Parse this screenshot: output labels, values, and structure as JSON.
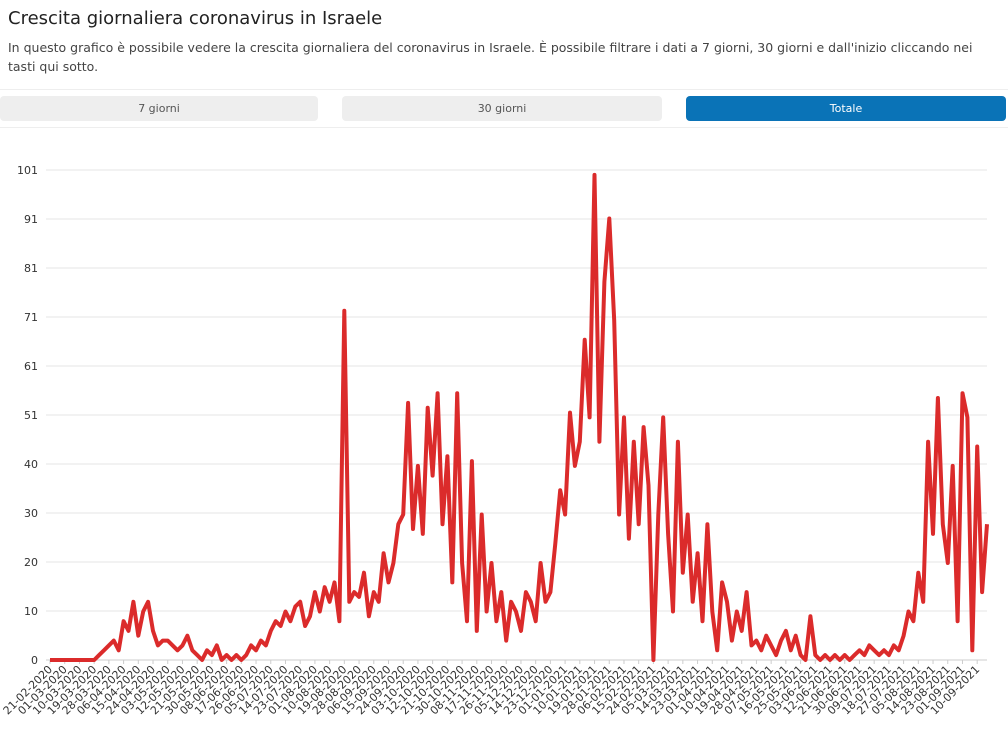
{
  "header": {
    "title": "Crescita giornaliera coronavirus in Israele",
    "subtitle": "In questo grafico è possibile vedere la crescita giornaliera del coronavirus in Israele. È possibile filtrare i dati a 7 giorni, 30 giorni e dall'inizio cliccando nei tasti qui sotto."
  },
  "buttons": [
    "7 giorni",
    "30 giorni",
    "Totale"
  ],
  "chart_data": {
    "type": "line",
    "color": "#db2b2b",
    "grid": true,
    "ylim": [
      0,
      101
    ],
    "yticks": [
      {
        "value": 0,
        "label": "0"
      },
      {
        "value": 10.1,
        "label": "10"
      },
      {
        "value": 20.2,
        "label": "20"
      },
      {
        "value": 30.3,
        "label": "30"
      },
      {
        "value": 40.4,
        "label": "40"
      },
      {
        "value": 50.5,
        "label": "51"
      },
      {
        "value": 60.6,
        "label": "61"
      },
      {
        "value": 70.7,
        "label": "71"
      },
      {
        "value": 80.8,
        "label": "81"
      },
      {
        "value": 90.9,
        "label": "91"
      },
      {
        "value": 101,
        "label": "101"
      }
    ],
    "categories": [
      "21-02-2020",
      null,
      null,
      "01-03-2020",
      null,
      null,
      "10-03-2020",
      null,
      null,
      "19-03-2020",
      null,
      null,
      "28-03-2020",
      null,
      null,
      "06-04-2020",
      null,
      null,
      "15-04-2020",
      null,
      null,
      "24-04-2020",
      null,
      null,
      "03-05-2020",
      null,
      null,
      "12-05-2020",
      null,
      null,
      "21-05-2020",
      null,
      null,
      "30-05-2020",
      null,
      null,
      "08-06-2020",
      null,
      null,
      "17-06-2020",
      null,
      null,
      "26-06-2020",
      null,
      null,
      "05-07-2020",
      null,
      null,
      "14-07-2020",
      null,
      null,
      "23-07-2020",
      null,
      null,
      "01-08-2020",
      null,
      null,
      "10-08-2020",
      null,
      null,
      "19-08-2020",
      null,
      null,
      "28-08-2020",
      null,
      null,
      "06-09-2020",
      null,
      null,
      "15-09-2020",
      null,
      null,
      "24-09-2020",
      null,
      null,
      "03-10-2020",
      null,
      null,
      "12-10-2020",
      null,
      null,
      "21-10-2020",
      null,
      null,
      "30-10-2020",
      null,
      null,
      "08-11-2020",
      null,
      null,
      "17-11-2020",
      null,
      null,
      "26-11-2020",
      null,
      null,
      "05-12-2020",
      null,
      null,
      "14-12-2020",
      null,
      null,
      "23-12-2020",
      null,
      null,
      "01-01-2021",
      null,
      null,
      "10-01-2021",
      null,
      null,
      "19-01-2021",
      null,
      null,
      "28-01-2021",
      null,
      null,
      "06-02-2021",
      null,
      null,
      "15-02-2021",
      null,
      null,
      "24-02-2021",
      null,
      null,
      "05-03-2021",
      null,
      null,
      "14-03-2021",
      null,
      null,
      "23-03-2021",
      null,
      null,
      "01-04-2021",
      null,
      null,
      "10-04-2021",
      null,
      null,
      "19-04-2021",
      null,
      null,
      "28-04-2021",
      null,
      null,
      "07-05-2021",
      null,
      null,
      "16-05-2021",
      null,
      null,
      "25-05-2021",
      null,
      null,
      "03-06-2021",
      null,
      null,
      "12-06-2021",
      null,
      null,
      "21-06-2021",
      null,
      null,
      "30-06-2021",
      null,
      null,
      "09-07-2021",
      null,
      null,
      "18-07-2021",
      null,
      null,
      "27-07-2021",
      null,
      null,
      "05-08-2021",
      null,
      null,
      "14-08-2021",
      null,
      null,
      "23-08-2021",
      null,
      null,
      "01-09-2021",
      null,
      null,
      "10-09-2021",
      null,
      null
    ],
    "values": [
      0,
      0,
      0,
      0,
      0,
      0,
      0,
      0,
      0,
      0,
      1,
      2,
      3,
      4,
      2,
      8,
      6,
      12,
      5,
      10,
      12,
      6,
      3,
      4,
      4,
      3,
      2,
      3,
      5,
      2,
      1,
      0,
      2,
      1,
      3,
      0,
      1,
      0,
      1,
      0,
      1,
      3,
      2,
      4,
      3,
      6,
      8,
      7,
      10,
      8,
      11,
      12,
      7,
      9,
      14,
      10,
      15,
      12,
      16,
      8,
      72,
      12,
      14,
      13,
      18,
      9,
      14,
      12,
      22,
      16,
      20,
      28,
      30,
      53,
      27,
      40,
      26,
      52,
      38,
      55,
      28,
      42,
      16,
      55,
      20,
      8,
      41,
      6,
      30,
      10,
      20,
      8,
      14,
      4,
      12,
      10,
      6,
      14,
      12,
      8,
      20,
      12,
      14,
      24,
      35,
      30,
      51,
      40,
      45,
      66,
      50,
      100,
      45,
      78,
      91,
      70,
      30,
      50,
      25,
      45,
      28,
      48,
      36,
      0,
      30,
      50,
      26,
      10,
      45,
      18,
      30,
      12,
      22,
      8,
      28,
      10,
      2,
      16,
      12,
      4,
      10,
      6,
      14,
      3,
      4,
      2,
      5,
      3,
      1,
      4,
      6,
      2,
      5,
      1,
      0,
      9,
      1,
      0,
      1,
      0,
      1,
      0,
      1,
      0,
      1,
      2,
      1,
      3,
      2,
      1,
      2,
      1,
      3,
      2,
      5,
      10,
      8,
      18,
      12,
      45,
      26,
      54,
      28,
      20,
      40,
      8,
      55,
      50,
      2,
      44,
      14,
      28
    ]
  }
}
